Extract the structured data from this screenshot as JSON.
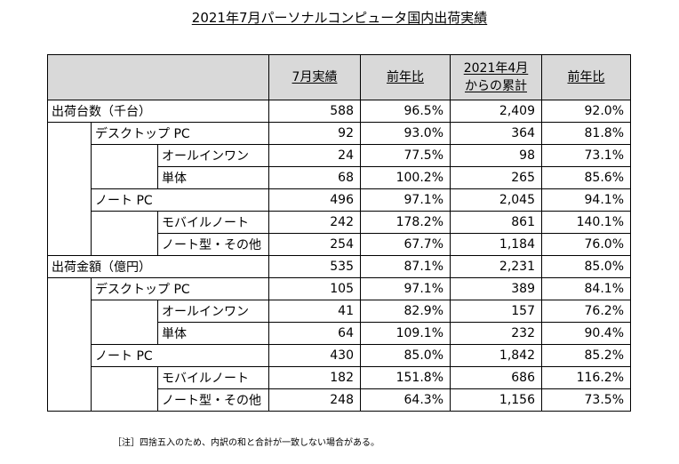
{
  "title": "2021年7月パーソナルコンピュータ国内出荷実績",
  "header": {
    "col1": "7月実績",
    "col2": "前年比",
    "col3_line1": "2021年4月",
    "col3_line2": "からの累計",
    "col4": "前年比"
  },
  "rows": [
    {
      "label": "出荷台数（千台）",
      "level": 0,
      "v1": "588",
      "v2": "96.5%",
      "v3": "2,409",
      "v4": "92.0%"
    },
    {
      "label": "デスクトップ PC",
      "level": 1,
      "v1": "92",
      "v2": "93.0%",
      "v3": "364",
      "v4": "81.8%"
    },
    {
      "label": "オールインワン",
      "level": 2,
      "v1": "24",
      "v2": "77.5%",
      "v3": "98",
      "v4": "73.1%"
    },
    {
      "label": "単体",
      "level": 2,
      "v1": "68",
      "v2": "100.2%",
      "v3": "265",
      "v4": "85.6%"
    },
    {
      "label": "ノート PC",
      "level": 1,
      "v1": "496",
      "v2": "97.1%",
      "v3": "2,045",
      "v4": "94.1%"
    },
    {
      "label": "モバイルノート",
      "level": 2,
      "v1": "242",
      "v2": "178.2%",
      "v3": "861",
      "v4": "140.1%"
    },
    {
      "label": "ノート型・その他",
      "level": 2,
      "v1": "254",
      "v2": "67.7%",
      "v3": "1,184",
      "v4": "76.0%"
    },
    {
      "label": "出荷金額（億円）",
      "level": 0,
      "v1": "535",
      "v2": "87.1%",
      "v3": "2,231",
      "v4": "85.0%"
    },
    {
      "label": "デスクトップ PC",
      "level": 1,
      "v1": "105",
      "v2": "97.1%",
      "v3": "389",
      "v4": "84.1%"
    },
    {
      "label": "オールインワン",
      "level": 2,
      "v1": "41",
      "v2": "82.9%",
      "v3": "157",
      "v4": "76.2%"
    },
    {
      "label": "単体",
      "level": 2,
      "v1": "64",
      "v2": "109.1%",
      "v3": "232",
      "v4": "90.4%"
    },
    {
      "label": "ノート PC",
      "level": 1,
      "v1": "430",
      "v2": "85.0%",
      "v3": "1,842",
      "v4": "85.2%"
    },
    {
      "label": "モバイルノート",
      "level": 2,
      "v1": "182",
      "v2": "151.8%",
      "v3": "686",
      "v4": "116.2%"
    },
    {
      "label": "ノート型・その他",
      "level": 2,
      "v1": "248",
      "v2": "64.3%",
      "v3": "1,156",
      "v4": "73.5%"
    }
  ],
  "note": "［注］四捨五入のため、内訳の和と合計が一致しない場合がある。"
}
